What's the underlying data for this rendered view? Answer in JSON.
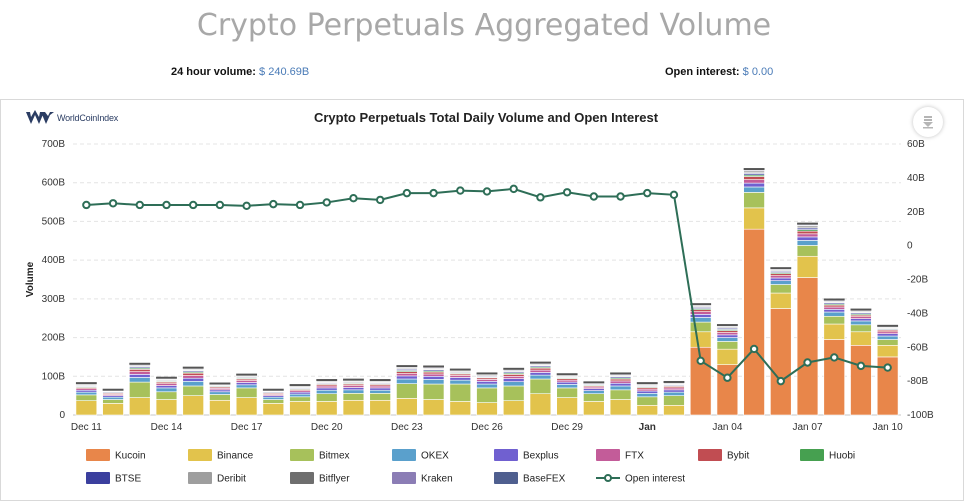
{
  "page": {
    "title": "Crypto Perpetuals Aggregated Volume",
    "volume_label": "24 hour volume:",
    "volume_value": "$ 240.69B",
    "oi_label": "Open interest:",
    "oi_value": "$ 0.00",
    "logo_text": "WorldCoinIndex"
  },
  "icons": {
    "download": "download-icon",
    "logo": "worldcoinindex-logo-icon"
  },
  "chart_data": {
    "type": "bar",
    "title": "Crypto Perpetuals Total Daily Volume and Open Interest",
    "ylabel": "Volume",
    "ylim": [
      0,
      700
    ],
    "y_ticks": [
      "0",
      "100B",
      "200B",
      "300B",
      "400B",
      "500B",
      "600B",
      "700B"
    ],
    "y2lim": [
      -100,
      60
    ],
    "y2_ticks": [
      "-100B",
      "-80B",
      "-60B",
      "-40B",
      "-20B",
      "0",
      "20B",
      "40B",
      "60B"
    ],
    "x_tick_labels": [
      {
        "index": 0,
        "label": "Dec 11"
      },
      {
        "index": 3,
        "label": "Dec 14"
      },
      {
        "index": 6,
        "label": "Dec 17"
      },
      {
        "index": 9,
        "label": "Dec 20"
      },
      {
        "index": 12,
        "label": "Dec 23"
      },
      {
        "index": 15,
        "label": "Dec 26"
      },
      {
        "index": 18,
        "label": "Dec 29"
      },
      {
        "index": 21,
        "label": "Jan"
      },
      {
        "index": 24,
        "label": "Jan 04"
      },
      {
        "index": 27,
        "label": "Jan 07"
      },
      {
        "index": 30,
        "label": "Jan 10"
      }
    ],
    "bold_tick_labels": [
      "Jan"
    ],
    "categories": [
      "Dec 11",
      "Dec 12",
      "Dec 13",
      "Dec 14",
      "Dec 15",
      "Dec 16",
      "Dec 17",
      "Dec 18",
      "Dec 19",
      "Dec 20",
      "Dec 21",
      "Dec 22",
      "Dec 23",
      "Dec 24",
      "Dec 25",
      "Dec 26",
      "Dec 27",
      "Dec 28",
      "Dec 29",
      "Dec 30",
      "Dec 31",
      "Jan 01",
      "Jan 02",
      "Jan 03",
      "Jan 04",
      "Jan 05",
      "Jan 06",
      "Jan 07",
      "Jan 08",
      "Jan 09",
      "Jan 10"
    ],
    "series": [
      {
        "name": "Kucoin",
        "color": "#e8864a",
        "values": [
          0,
          0,
          0,
          0,
          0,
          0,
          0,
          0,
          0,
          0,
          0,
          0,
          0,
          0,
          0,
          0,
          0,
          0,
          0,
          0,
          0,
          0,
          0,
          175,
          130,
          480,
          275,
          355,
          195,
          180,
          150
        ]
      },
      {
        "name": "Binance",
        "color": "#e2c34c",
        "values": [
          37,
          30,
          45,
          40,
          50,
          38,
          45,
          30,
          35,
          35,
          38,
          38,
          43,
          40,
          35,
          32,
          37,
          55,
          45,
          35,
          40,
          25,
          25,
          40,
          40,
          55,
          40,
          55,
          40,
          35,
          30
        ]
      },
      {
        "name": "Bitmex",
        "color": "#a7c15b",
        "values": [
          15,
          10,
          40,
          20,
          25,
          15,
          25,
          10,
          12,
          20,
          18,
          18,
          38,
          40,
          45,
          38,
          38,
          38,
          25,
          20,
          25,
          22,
          25,
          25,
          20,
          40,
          22,
          28,
          20,
          18,
          15
        ]
      },
      {
        "name": "OKEX",
        "color": "#5aa0cc",
        "values": [
          7,
          6,
          12,
          10,
          12,
          7,
          8,
          6,
          7,
          9,
          9,
          8,
          12,
          12,
          10,
          10,
          11,
          10,
          9,
          8,
          10,
          9,
          9,
          12,
          10,
          14,
          10,
          13,
          11,
          10,
          9
        ]
      },
      {
        "name": "Bexplus",
        "color": "#7060d0",
        "values": [
          5,
          4,
          8,
          6,
          8,
          5,
          6,
          4,
          5,
          6,
          6,
          6,
          8,
          8,
          7,
          7,
          8,
          7,
          6,
          5,
          7,
          6,
          6,
          8,
          7,
          10,
          7,
          9,
          7,
          6,
          6
        ]
      },
      {
        "name": "FTX",
        "color": "#c35c99",
        "values": [
          4,
          3,
          7,
          5,
          7,
          4,
          5,
          3,
          4,
          5,
          5,
          5,
          6,
          6,
          5,
          5,
          6,
          6,
          5,
          4,
          6,
          5,
          5,
          7,
          6,
          9,
          6,
          8,
          6,
          5,
          5
        ]
      },
      {
        "name": "Bybit",
        "color": "#c14d52",
        "values": [
          3,
          3,
          6,
          4,
          6,
          3,
          4,
          3,
          3,
          4,
          4,
          4,
          5,
          5,
          4,
          4,
          5,
          5,
          4,
          3,
          5,
          4,
          4,
          5,
          5,
          8,
          5,
          7,
          5,
          4,
          4
        ]
      },
      {
        "name": "Huobi",
        "color": "#46a050",
        "values": [
          2,
          2,
          3,
          2,
          3,
          2,
          2,
          2,
          2,
          2,
          2,
          2,
          3,
          3,
          2,
          2,
          3,
          3,
          2,
          2,
          3,
          2,
          2,
          3,
          3,
          4,
          3,
          4,
          3,
          3,
          2
        ]
      },
      {
        "name": "BTSE",
        "color": "#3b3f9e",
        "values": [
          2,
          2,
          3,
          2,
          3,
          2,
          2,
          2,
          2,
          2,
          2,
          2,
          3,
          3,
          2,
          2,
          3,
          3,
          2,
          2,
          3,
          2,
          2,
          3,
          3,
          4,
          3,
          4,
          3,
          3,
          2
        ]
      },
      {
        "name": "Deribit",
        "color": "#9e9e9e",
        "values": [
          2,
          1,
          2,
          2,
          2,
          1,
          2,
          1,
          2,
          2,
          2,
          2,
          2,
          2,
          2,
          2,
          2,
          2,
          2,
          1,
          2,
          2,
          2,
          2,
          2,
          3,
          2,
          3,
          2,
          2,
          2
        ]
      },
      {
        "name": "Bitflyer",
        "color": "#6e6e6e",
        "values": [
          2,
          1,
          2,
          2,
          2,
          1,
          2,
          1,
          2,
          2,
          2,
          2,
          2,
          2,
          2,
          2,
          2,
          2,
          2,
          1,
          2,
          2,
          2,
          2,
          2,
          3,
          2,
          3,
          2,
          2,
          2
        ]
      },
      {
        "name": "Kraken",
        "color": "#8b7db5",
        "values": [
          1,
          1,
          2,
          1,
          2,
          1,
          1,
          1,
          1,
          1,
          1,
          1,
          2,
          2,
          1,
          1,
          2,
          2,
          1,
          1,
          2,
          1,
          1,
          2,
          2,
          2,
          2,
          2,
          2,
          2,
          1
        ]
      },
      {
        "name": "BaseFEX",
        "color": "#4f5f8f",
        "values": [
          1,
          1,
          1,
          1,
          1,
          1,
          1,
          1,
          1,
          1,
          1,
          1,
          1,
          1,
          1,
          1,
          1,
          1,
          1,
          1,
          1,
          1,
          1,
          1,
          1,
          2,
          1,
          2,
          1,
          1,
          1
        ]
      }
    ],
    "line_series": {
      "name": "Open interest",
      "color": "#2e6e57",
      "axis": "right",
      "values": [
        24,
        25,
        24,
        24,
        24,
        24,
        23.5,
        24.5,
        24,
        25.5,
        28,
        27,
        31,
        31,
        32.5,
        32,
        33.5,
        28.5,
        31.5,
        29,
        29,
        31,
        30,
        -68,
        -78,
        -61,
        -80,
        -69,
        -66,
        -71,
        -72
      ]
    },
    "grid": true,
    "legend_position": "bottom"
  }
}
